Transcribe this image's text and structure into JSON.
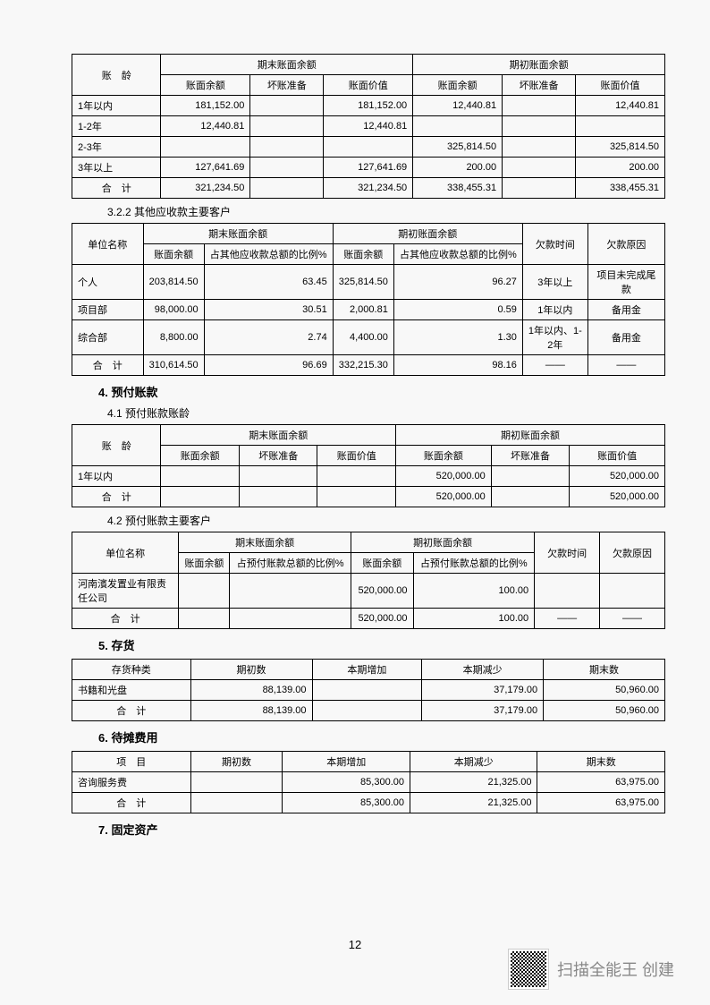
{
  "t1": {
    "h_age": "账　龄",
    "h_end": "期末账面余额",
    "h_begin": "期初账面余额",
    "h_bal": "账面余额",
    "h_prov": "坏账准备",
    "h_bv": "账面价值",
    "rows": [
      {
        "age": "1年以内",
        "eb": "181,152.00",
        "ep": "",
        "ev": "181,152.00",
        "bb": "12,440.81",
        "bp": "",
        "bv": "12,440.81"
      },
      {
        "age": "1-2年",
        "eb": "12,440.81",
        "ep": "",
        "ev": "12,440.81",
        "bb": "",
        "bp": "",
        "bv": ""
      },
      {
        "age": "2-3年",
        "eb": "",
        "ep": "",
        "ev": "",
        "bb": "325,814.50",
        "bp": "",
        "bv": "325,814.50"
      },
      {
        "age": "3年以上",
        "eb": "127,641.69",
        "ep": "",
        "ev": "127,641.69",
        "bb": "200.00",
        "bp": "",
        "bv": "200.00"
      }
    ],
    "total": {
      "age": "合　计",
      "eb": "321,234.50",
      "ep": "",
      "ev": "321,234.50",
      "bb": "338,455.31",
      "bp": "",
      "bv": "338,455.31"
    }
  },
  "s322": "3.2.2 其他应收款主要客户",
  "t2": {
    "h_name": "单位名称",
    "h_end": "期末账面余额",
    "h_begin": "期初账面余额",
    "h_bal": "账面余额",
    "h_pct": "占其他应收款总额的比例%",
    "h_time": "欠款时间",
    "h_reason": "欠款原因",
    "rows": [
      {
        "n": "个人",
        "eb": "203,814.50",
        "ep": "63.45",
        "bb": "325,814.50",
        "bp": "96.27",
        "t": "3年以上",
        "r": "项目未完成尾款"
      },
      {
        "n": "项目部",
        "eb": "98,000.00",
        "ep": "30.51",
        "bb": "2,000.81",
        "bp": "0.59",
        "t": "1年以内",
        "r": "备用金"
      },
      {
        "n": "综合部",
        "eb": "8,800.00",
        "ep": "2.74",
        "bb": "4,400.00",
        "bp": "1.30",
        "t": "1年以内、1-2年",
        "r": "备用金"
      }
    ],
    "total": {
      "n": "合　计",
      "eb": "310,614.50",
      "ep": "96.69",
      "bb": "332,215.30",
      "bp": "98.16",
      "t": "——",
      "r": "——"
    }
  },
  "s4": "4. 预付账款",
  "s41": "4.1 预付账款账龄",
  "t3": {
    "h_age": "账　龄",
    "h_end": "期末账面余额",
    "h_begin": "期初账面余额",
    "h_bal": "账面余额",
    "h_prov": "坏账准备",
    "h_bv": "账面价值",
    "rows": [
      {
        "age": "1年以内",
        "eb": "",
        "ep": "",
        "ev": "",
        "bb": "520,000.00",
        "bp": "",
        "bv": "520,000.00"
      }
    ],
    "total": {
      "age": "合　计",
      "eb": "",
      "ep": "",
      "ev": "",
      "bb": "520,000.00",
      "bp": "",
      "bv": "520,000.00"
    }
  },
  "s42": "4.2 预付账款主要客户",
  "t4": {
    "h_name": "单位名称",
    "h_end": "期末账面余额",
    "h_begin": "期初账面余额",
    "h_bal": "账面余额",
    "h_pct": "占预付账款总额的比例%",
    "h_time": "欠款时间",
    "h_reason": "欠款原因",
    "rows": [
      {
        "n": "河南濱发置业有限责任公司",
        "eb": "",
        "ep": "",
        "bb": "520,000.00",
        "bp": "100.00",
        "t": "",
        "r": ""
      }
    ],
    "total": {
      "n": "合　计",
      "eb": "",
      "ep": "",
      "bb": "520,000.00",
      "bp": "100.00",
      "t": "——",
      "r": "——"
    }
  },
  "s5": "5. 存货",
  "t5": {
    "h1": "存货种类",
    "h2": "期初数",
    "h3": "本期增加",
    "h4": "本期减少",
    "h5": "期末数",
    "rows": [
      {
        "c1": "书籍和光盘",
        "c2": "88,139.00",
        "c3": "",
        "c4": "37,179.00",
        "c5": "50,960.00"
      }
    ],
    "total": {
      "c1": "合　计",
      "c2": "88,139.00",
      "c3": "",
      "c4": "37,179.00",
      "c5": "50,960.00"
    }
  },
  "s6": "6. 待摊费用",
  "t6": {
    "h1": "项　目",
    "h2": "期初数",
    "h3": "本期增加",
    "h4": "本期减少",
    "h5": "期末数",
    "rows": [
      {
        "c1": "咨询服务费",
        "c2": "",
        "c3": "85,300.00",
        "c4": "21,325.00",
        "c5": "63,975.00"
      }
    ],
    "total": {
      "c1": "合　计",
      "c2": "",
      "c3": "85,300.00",
      "c4": "21,325.00",
      "c5": "63,975.00"
    }
  },
  "s7": "7. 固定资产",
  "page": "12",
  "footer": "扫描全能王 创建"
}
